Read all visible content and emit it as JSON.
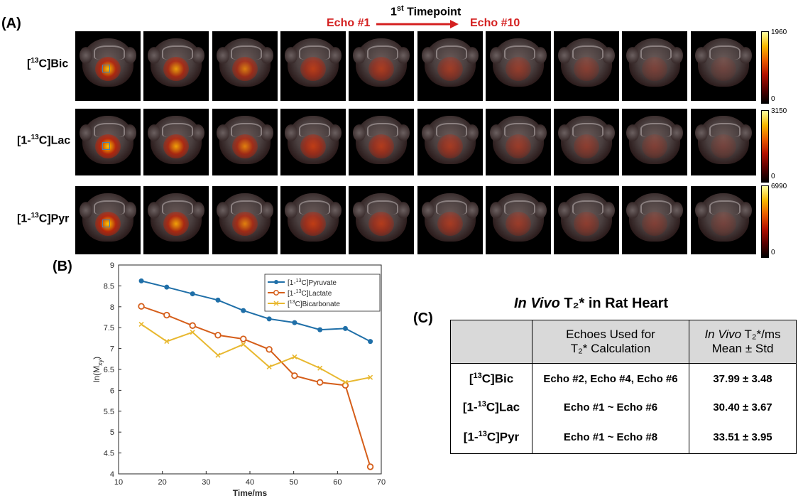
{
  "panels": {
    "a": "(A)",
    "b": "(B)",
    "c": "(C)"
  },
  "header": {
    "timepoint_num": "1",
    "timepoint_sup": "st",
    "timepoint_text": " Timepoint",
    "echo_start": "Echo #1",
    "echo_end": "Echo #10"
  },
  "rows": [
    {
      "label_pre": "[",
      "sup": "13",
      "label_post": "C]Bic",
      "cmax": "1960",
      "cmin": "0"
    },
    {
      "label_pre": "[1-",
      "sup": "13",
      "label_post": "C]Lac",
      "cmax": "3150",
      "cmin": "0"
    },
    {
      "label_pre": "[1-",
      "sup": "13",
      "label_post": "C]Pyr",
      "cmax": "6990",
      "cmin": "0"
    }
  ],
  "colors": {
    "pyruvate": "#1f6fa8",
    "lactate": "#d55e1a",
    "bicarbonate": "#e8b830",
    "arrow": "#d42020"
  },
  "chart_data": {
    "type": "line",
    "xlabel": "Time/ms",
    "ylabel_main": "ln(M",
    "ylabel_sub": "xy",
    "ylabel_end": ")",
    "xlim": [
      10,
      70
    ],
    "ylim": [
      4,
      9
    ],
    "xticks": [
      10,
      20,
      30,
      40,
      50,
      60,
      70
    ],
    "yticks": [
      4,
      4.5,
      5,
      5.5,
      6,
      6.5,
      7,
      7.5,
      8,
      8.5,
      9
    ],
    "x": [
      15.2,
      21.0,
      26.9,
      32.7,
      38.5,
      44.4,
      50.2,
      56.0,
      61.8,
      67.5
    ],
    "series": [
      {
        "name_pre": "[1-",
        "name_sup": "13",
        "name_post": "C]Pyruvate",
        "marker": "dot",
        "values": [
          8.62,
          8.47,
          8.31,
          8.16,
          7.91,
          7.71,
          7.62,
          7.45,
          7.48,
          7.17
        ]
      },
      {
        "name_pre": "[1-",
        "name_sup": "13",
        "name_post": "C]Lactate",
        "marker": "circle",
        "values": [
          8.01,
          7.8,
          7.55,
          7.32,
          7.23,
          6.98,
          6.35,
          6.19,
          6.12,
          4.17
        ]
      },
      {
        "name_pre": "[",
        "name_sup": "13",
        "name_post": "C]Bicarbonate",
        "marker": "x",
        "values": [
          7.58,
          7.17,
          7.39,
          6.84,
          7.1,
          6.56,
          6.8,
          6.53,
          6.19,
          6.31
        ]
      }
    ]
  },
  "table": {
    "title_italic": "In Vivo",
    "title_rest": " T₂* in Rat Heart",
    "col2_line1": "Echoes Used for",
    "col2_line2": "T₂* Calculation",
    "col3_italic": "In Vivo",
    "col3_rest": " T₂*/ms",
    "col3_line2": "Mean ± Std",
    "rows": [
      {
        "pre": "[",
        "sup": "13",
        "post": "C]Bic",
        "echoes": "Echo #2, Echo #4, Echo #6",
        "value": "37.99 ± 3.48"
      },
      {
        "pre": "[1-",
        "sup": "13",
        "post": "C]Lac",
        "echoes": "Echo #1 ~ Echo #6",
        "value": "30.40 ± 3.67"
      },
      {
        "pre": "[1-",
        "sup": "13",
        "post": "C]Pyr",
        "echoes": "Echo #1 ~ Echo #8",
        "value": "33.51 ± 3.95"
      }
    ]
  }
}
